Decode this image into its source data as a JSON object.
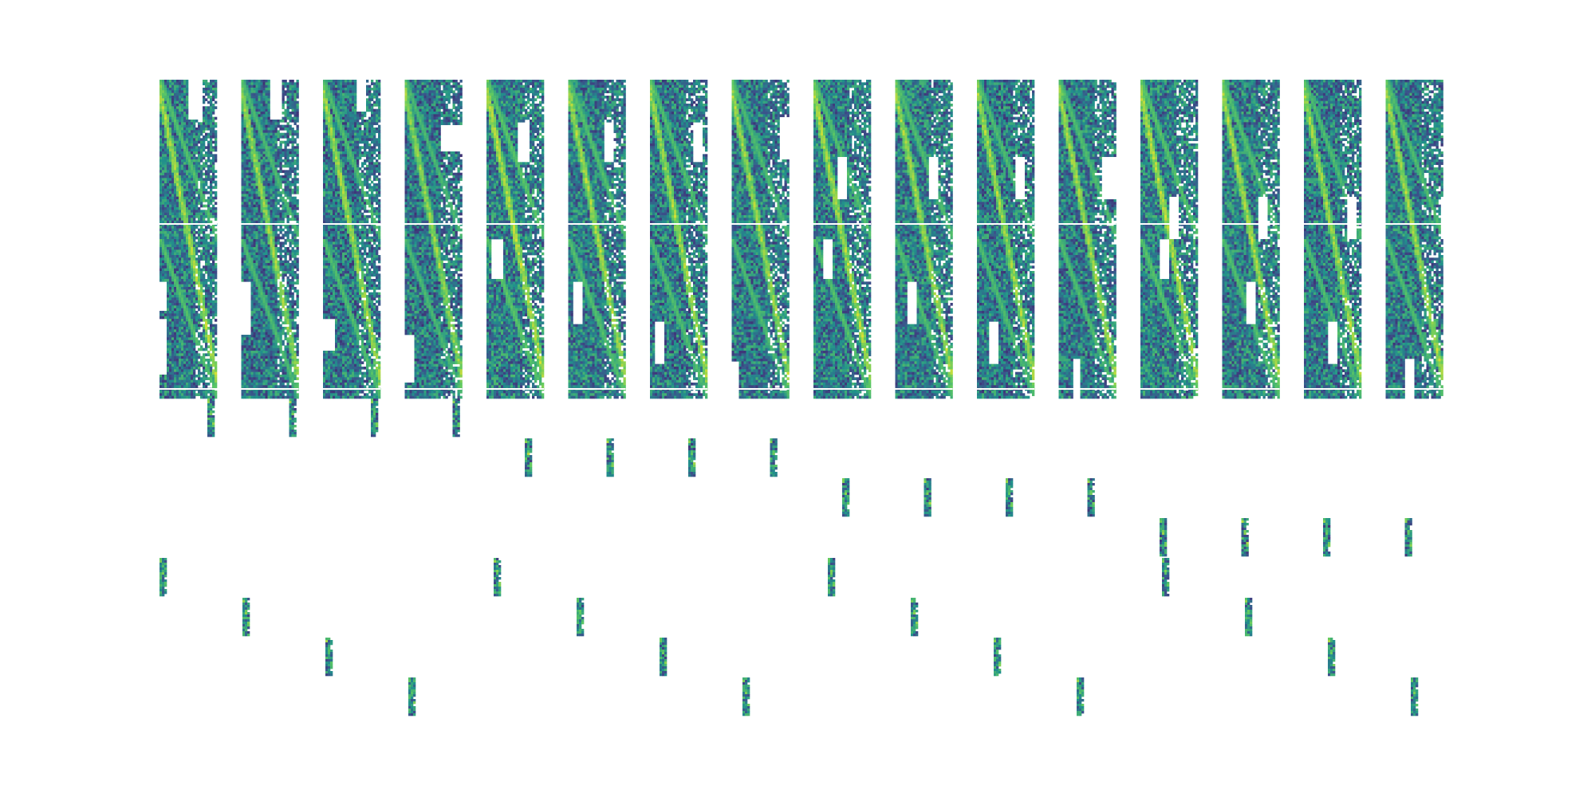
{
  "chart_data": {
    "type": "heatmap",
    "title": "",
    "xlabel": "",
    "ylabel": "",
    "axes_visible": false,
    "grid": false,
    "legend": "none",
    "colormap": "viridis",
    "value_range": [
      0,
      1
    ],
    "missing_color": "#ffffff",
    "panel_count": 16,
    "colors": {
      "background": "#ffffff",
      "low": "#3b3f8a",
      "mid": "#2a8a8a",
      "high": "#5ad05a",
      "peak": "#9be564"
    },
    "panels": [
      {
        "index": 1,
        "dominant_row_band": 1,
        "block_column": 3,
        "diagonal_value": 0.88,
        "background_value": 0.42
      },
      {
        "index": 2,
        "dominant_row_band": 1,
        "block_column": 3,
        "diagonal_value": 0.86,
        "background_value": 0.4
      },
      {
        "index": 3,
        "dominant_row_band": 1,
        "block_column": 3,
        "diagonal_value": 0.87,
        "background_value": 0.41
      },
      {
        "index": 4,
        "dominant_row_band": 1,
        "block_column": 3,
        "diagonal_value": 0.85,
        "background_value": 0.4
      },
      {
        "index": 5,
        "dominant_row_band": 2,
        "block_column": 2,
        "diagonal_value": 0.9,
        "background_value": 0.43
      },
      {
        "index": 6,
        "dominant_row_band": 2,
        "block_column": 2,
        "diagonal_value": 0.88,
        "background_value": 0.42
      },
      {
        "index": 7,
        "dominant_row_band": 2,
        "block_column": 2,
        "diagonal_value": 0.87,
        "background_value": 0.41
      },
      {
        "index": 8,
        "dominant_row_band": 2,
        "block_column": 2,
        "diagonal_value": 0.86,
        "background_value": 0.41
      },
      {
        "index": 9,
        "dominant_row_band": 3,
        "block_column": 1,
        "diagonal_value": 0.88,
        "background_value": 0.42
      },
      {
        "index": 10,
        "dominant_row_band": 3,
        "block_column": 1,
        "diagonal_value": 0.87,
        "background_value": 0.42
      },
      {
        "index": 11,
        "dominant_row_band": 3,
        "block_column": 1,
        "diagonal_value": 0.86,
        "background_value": 0.41
      },
      {
        "index": 12,
        "dominant_row_band": 3,
        "block_column": 1,
        "diagonal_value": 0.87,
        "background_value": 0.41
      },
      {
        "index": 13,
        "dominant_row_band": 4,
        "block_column": 0,
        "diagonal_value": 0.89,
        "background_value": 0.43
      },
      {
        "index": 14,
        "dominant_row_band": 4,
        "block_column": 0,
        "diagonal_value": 0.88,
        "background_value": 0.42
      },
      {
        "index": 15,
        "dominant_row_band": 4,
        "block_column": 0,
        "diagonal_value": 0.86,
        "background_value": 0.41
      },
      {
        "index": 16,
        "dominant_row_band": 4,
        "block_column": 0,
        "diagonal_value": 0.87,
        "background_value": 0.41
      }
    ]
  }
}
